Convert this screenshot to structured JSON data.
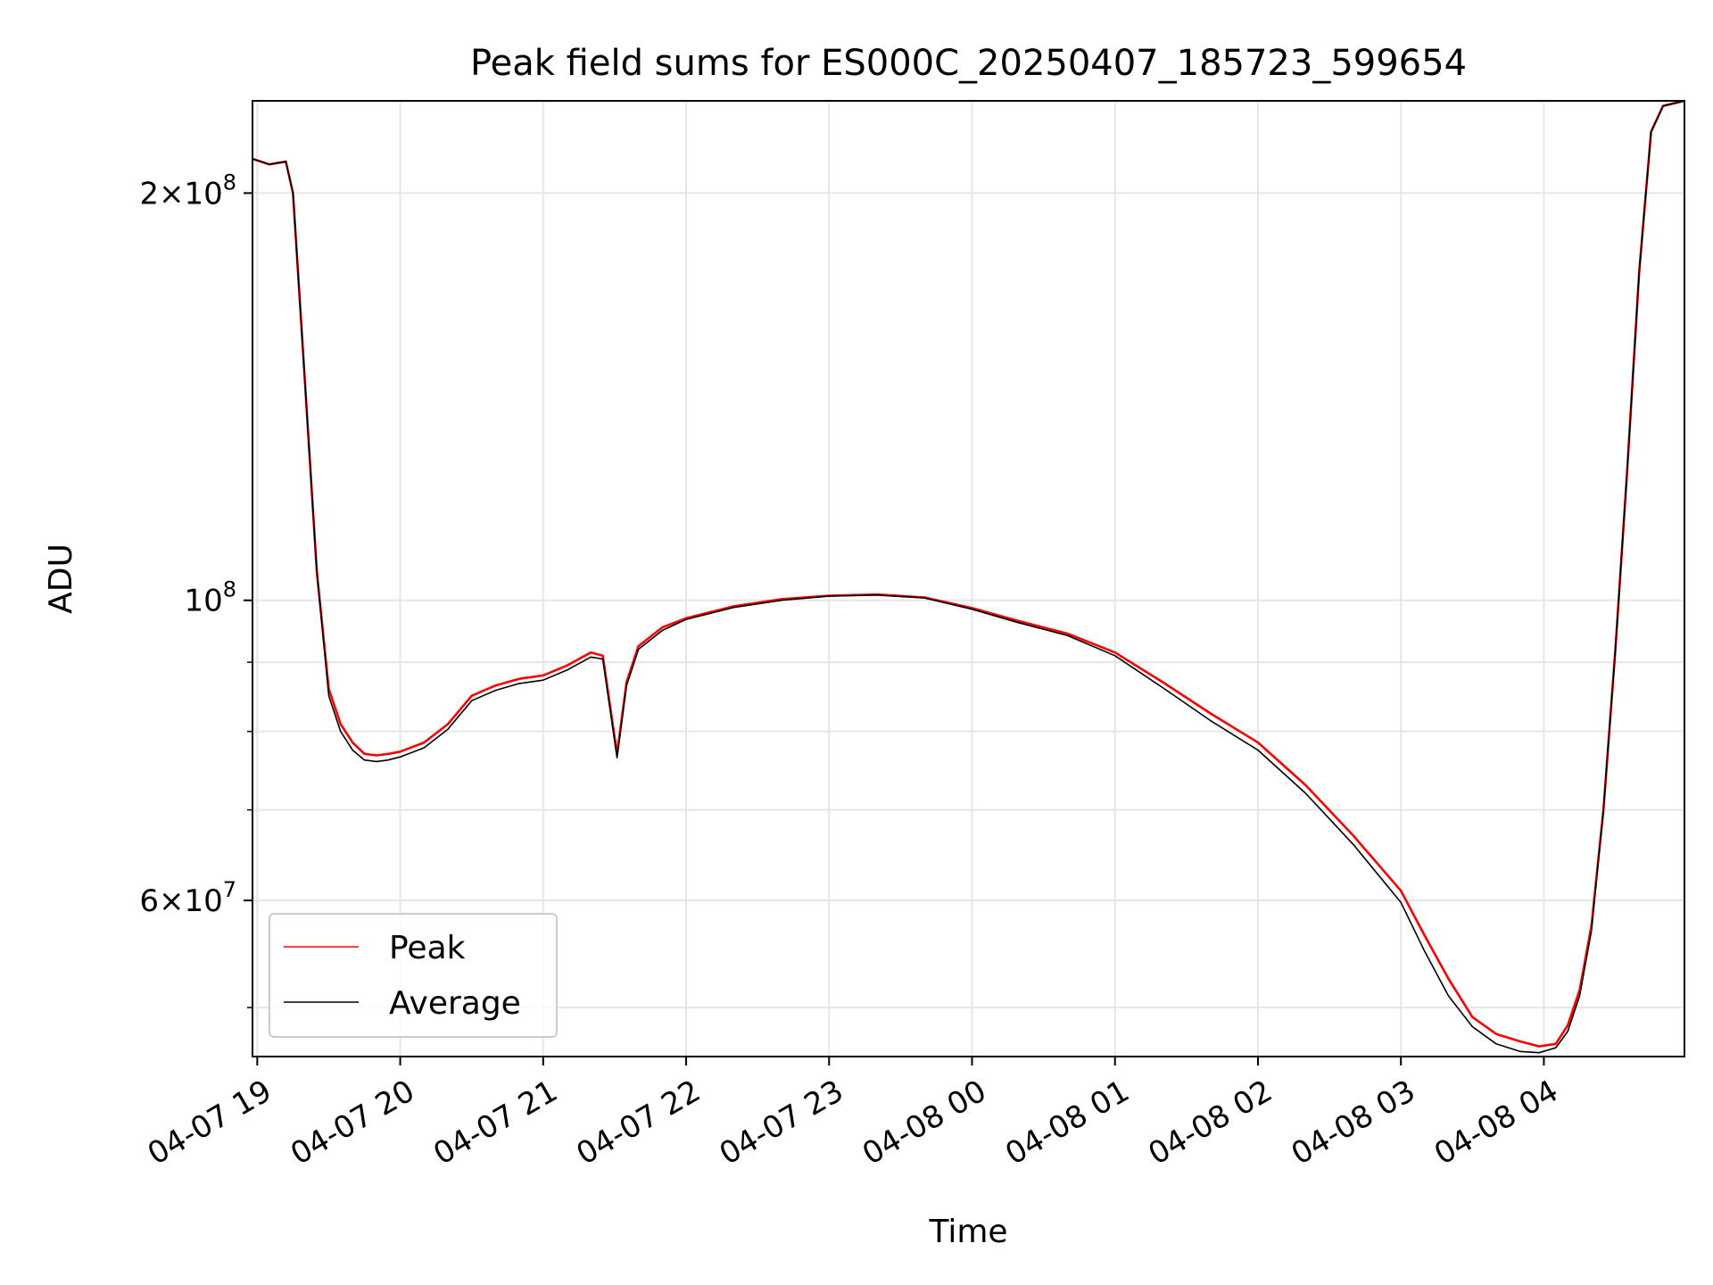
{
  "chart_data": {
    "type": "line",
    "title": "Peak field sums for ES000C_20250407_185723_599654",
    "xlabel": "Time",
    "ylabel": "ADU",
    "yscale": "log",
    "ylim": [
      46000000,
      234000000
    ],
    "xlim": [
      "2025-04-07 18:58",
      "2025-04-08 04:59"
    ],
    "grid": true,
    "legend": {
      "placement": "lower-left",
      "entries": [
        "Peak",
        "Average"
      ]
    },
    "x_ticks": [
      "04-07 19",
      "04-07 20",
      "04-07 21",
      "04-07 22",
      "04-07 23",
      "04-08 00",
      "04-08 01",
      "04-08 02",
      "04-08 03",
      "04-08 04"
    ],
    "y_ticks": [
      {
        "value": 60000000,
        "mantissa": "6",
        "exponent": "7"
      },
      {
        "value": 100000000,
        "mantissa": "",
        "exponent": "8"
      },
      {
        "value": 200000000,
        "mantissa": "2",
        "exponent": "8"
      }
    ],
    "y_minor_ticks": [
      50000000,
      70000000,
      80000000,
      90000000
    ],
    "x": [
      "2025-04-07 18:58",
      "2025-04-07 19:05",
      "2025-04-07 19:12",
      "2025-04-07 19:15",
      "2025-04-07 19:20",
      "2025-04-07 19:25",
      "2025-04-07 19:30",
      "2025-04-07 19:35",
      "2025-04-07 19:40",
      "2025-04-07 19:45",
      "2025-04-07 19:50",
      "2025-04-07 19:55",
      "2025-04-07 20:00",
      "2025-04-07 20:10",
      "2025-04-07 20:20",
      "2025-04-07 20:30",
      "2025-04-07 20:40",
      "2025-04-07 20:50",
      "2025-04-07 21:00",
      "2025-04-07 21:10",
      "2025-04-07 21:20",
      "2025-04-07 21:25",
      "2025-04-07 21:31",
      "2025-04-07 21:35",
      "2025-04-07 21:40",
      "2025-04-07 21:50",
      "2025-04-07 22:00",
      "2025-04-07 22:20",
      "2025-04-07 22:40",
      "2025-04-07 23:00",
      "2025-04-07 23:20",
      "2025-04-07 23:40",
      "2025-04-08 00:00",
      "2025-04-08 00:20",
      "2025-04-08 00:40",
      "2025-04-08 01:00",
      "2025-04-08 01:20",
      "2025-04-08 01:40",
      "2025-04-08 02:00",
      "2025-04-08 02:20",
      "2025-04-08 02:40",
      "2025-04-08 03:00",
      "2025-04-08 03:10",
      "2025-04-08 03:20",
      "2025-04-08 03:30",
      "2025-04-08 03:40",
      "2025-04-08 03:50",
      "2025-04-08 03:58",
      "2025-04-08 04:05",
      "2025-04-08 04:10",
      "2025-04-08 04:15",
      "2025-04-08 04:20",
      "2025-04-08 04:25",
      "2025-04-08 04:30",
      "2025-04-08 04:35",
      "2025-04-08 04:40",
      "2025-04-08 04:45",
      "2025-04-08 04:50",
      "2025-04-08 04:59"
    ],
    "series": [
      {
        "name": "Peak",
        "color": "#ff0000",
        "values": [
          212000000,
          210000000,
          211000000,
          200000000,
          145000000,
          105000000,
          86000000,
          81000000,
          78500000,
          77000000,
          76800000,
          77000000,
          77300000,
          78500000,
          81000000,
          85000000,
          86500000,
          87500000,
          88000000,
          89500000,
          91500000,
          91000000,
          77000000,
          87000000,
          92500000,
          95500000,
          97000000,
          99000000,
          100200000,
          100800000,
          101000000,
          100500000,
          98700000,
          96500000,
          94500000,
          91500000,
          87000000,
          82500000,
          78500000,
          73000000,
          67000000,
          61000000,
          56500000,
          52500000,
          49200000,
          47800000,
          47200000,
          46800000,
          47000000,
          48500000,
          51500000,
          57500000,
          70000000,
          92000000,
          125000000,
          175000000,
          222000000,
          232000000,
          234000000
        ]
      },
      {
        "name": "Average",
        "color": "#000000",
        "values": [
          212000000,
          210000000,
          211000000,
          200000000,
          145000000,
          105000000,
          85000000,
          80000000,
          77500000,
          76200000,
          76000000,
          76200000,
          76600000,
          77800000,
          80300000,
          84300000,
          85800000,
          86800000,
          87300000,
          88800000,
          90800000,
          90500000,
          76500000,
          86500000,
          92000000,
          95000000,
          96800000,
          98800000,
          100000000,
          100700000,
          100900000,
          100400000,
          98500000,
          96200000,
          94200000,
          91000000,
          86200000,
          81500000,
          77500000,
          72000000,
          66000000,
          59800000,
          55000000,
          51000000,
          48400000,
          47000000,
          46400000,
          46300000,
          46700000,
          48000000,
          51000000,
          57000000,
          70000000,
          92000000,
          125000000,
          175000000,
          222000000,
          232000000,
          234000000
        ]
      }
    ]
  }
}
